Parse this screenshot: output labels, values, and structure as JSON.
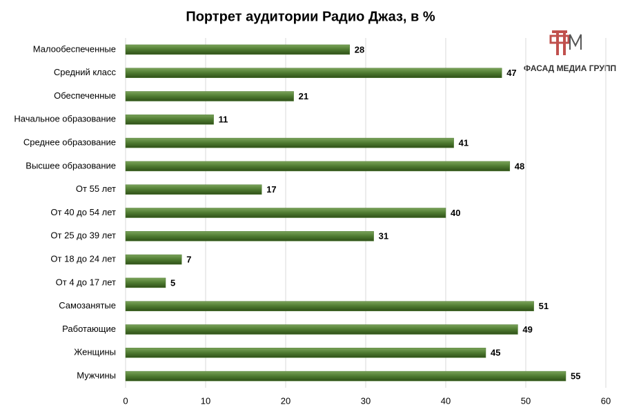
{
  "chart_data": {
    "type": "barh",
    "title": "Портрет аудитории Радио Джаз, в %",
    "annotation": "ФАСАД МЕДИА ГРУПП",
    "categories": [
      "Малообеспеченные",
      "Средний класс",
      "Обеспеченные",
      "Начальное образование",
      "Среднее образование",
      "Высшее образование",
      "От 55 лет",
      "От 40 до 54 лет",
      "От 25 до 39 лет",
      "От 18 до 24 лет",
      "От 4 до 17 лет",
      "Самозанятые",
      "Работающие",
      "Женщины",
      "Мужчины"
    ],
    "values": [
      28,
      47,
      21,
      11,
      41,
      48,
      17,
      40,
      31,
      7,
      5,
      51,
      49,
      45,
      55
    ],
    "color": "#4e7a30",
    "xlim": [
      0,
      60
    ],
    "xticks": [
      0,
      10,
      20,
      30,
      40,
      50,
      60
    ],
    "grid": true
  }
}
